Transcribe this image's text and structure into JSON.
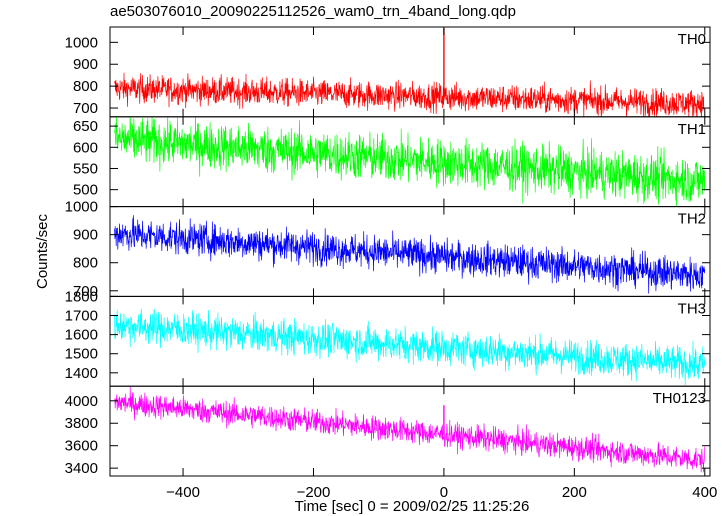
{
  "chart_data": {
    "type": "line",
    "title": "ae503076010_20090225112526_wam0_trn_4band_long.qdp",
    "xlabel": "Time [sec] 0 = 2009/02/25 11:25:26",
    "ylabel": "Counts/sec",
    "xlim": [
      -512,
      408
    ],
    "xticks": [
      -400,
      -200,
      0,
      200,
      400
    ],
    "grid": false,
    "legend": "none",
    "panels": [
      {
        "name": "TH0",
        "color": "#ff0000",
        "ylim": [
          660,
          1070
        ],
        "yticks": [
          700,
          800,
          900,
          1000
        ],
        "trend": {
          "x": [
            -505,
            400
          ],
          "y": [
            790,
            720
          ]
        },
        "noise": 32,
        "spikes": [
          {
            "x": 0,
            "y": 1065
          }
        ]
      },
      {
        "name": "TH1",
        "color": "#00ff00",
        "ylim": [
          460,
          672
        ],
        "yticks": [
          500,
          550,
          600,
          650
        ],
        "trend": {
          "x": [
            -505,
            400
          ],
          "y": [
            620,
            520
          ]
        },
        "noise": 28,
        "spikes": []
      },
      {
        "name": "TH2",
        "color": "#0000ff",
        "ylim": [
          680,
          1000
        ],
        "yticks": [
          700,
          800,
          900,
          1000
        ],
        "trend": {
          "x": [
            -505,
            400
          ],
          "y": [
            905,
            755
          ]
        },
        "noise": 30,
        "spikes": []
      },
      {
        "name": "TH3",
        "color": "#00ffff",
        "ylim": [
          1330,
          1800
        ],
        "yticks": [
          1400,
          1500,
          1600,
          1700,
          1800
        ],
        "trend": {
          "x": [
            -505,
            400
          ],
          "y": [
            1650,
            1440
          ]
        },
        "noise": 45,
        "spikes": []
      },
      {
        "name": "TH0123",
        "color": "#ff00ff",
        "ylim": [
          3330,
          4130
        ],
        "yticks": [
          3400,
          3600,
          3800,
          4000
        ],
        "trend": {
          "x": [
            -505,
            400
          ],
          "y": [
            3990,
            3470
          ]
        },
        "noise": 55,
        "spikes": [
          {
            "x": 0,
            "y": 3960
          }
        ]
      }
    ]
  }
}
